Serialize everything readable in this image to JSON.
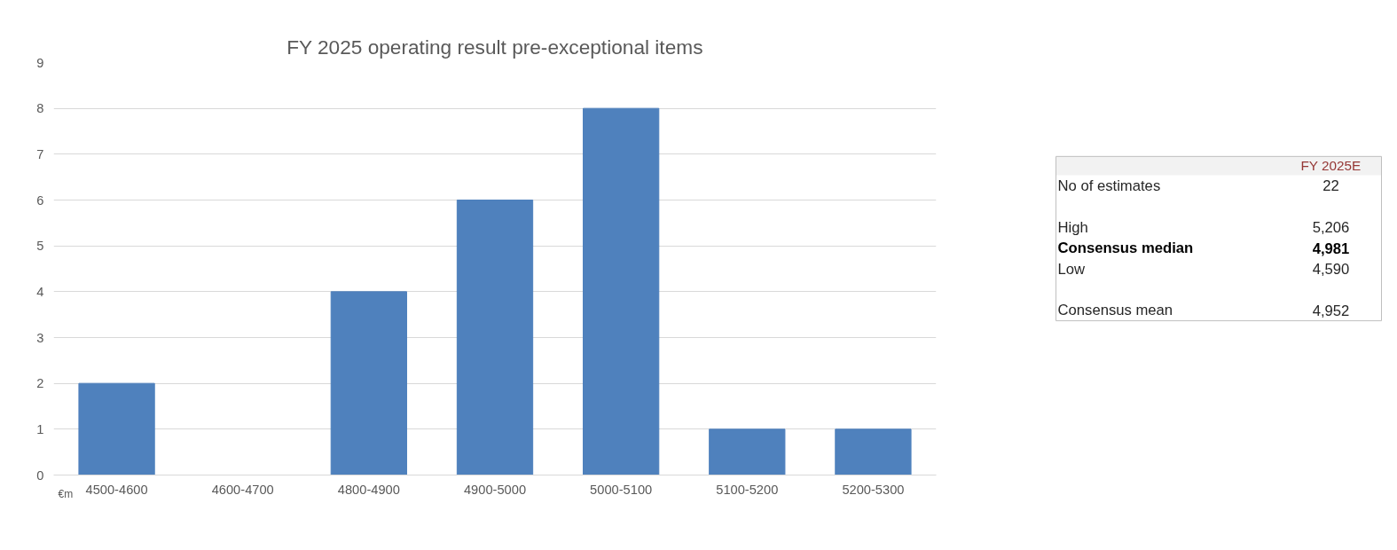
{
  "chart_data": [
    {
      "type": "bar",
      "title": "FY 2025 operating result pre-exceptional items",
      "categories": [
        "4500-4600",
        "4600-4700",
        "4800-4900",
        "4900-5000",
        "5000-5100",
        "5100-5200",
        "5200-5300"
      ],
      "values": [
        2,
        0,
        4,
        6,
        8,
        1,
        1
      ],
      "color": "#4f81bd",
      "ylim": [
        0,
        9
      ],
      "yticks": [
        0,
        1,
        2,
        3,
        4,
        5,
        6,
        7,
        8,
        9
      ],
      "grid": "y",
      "annotations": [
        "€m"
      ]
    },
    {
      "type": "other",
      "title": "FY 2025E",
      "annotations": [
        "No of estimates",
        "22",
        "High",
        "5,206",
        "Consensus median",
        "4,981",
        "Low",
        "4,590",
        "Consensus mean",
        "4,952"
      ]
    }
  ]
}
